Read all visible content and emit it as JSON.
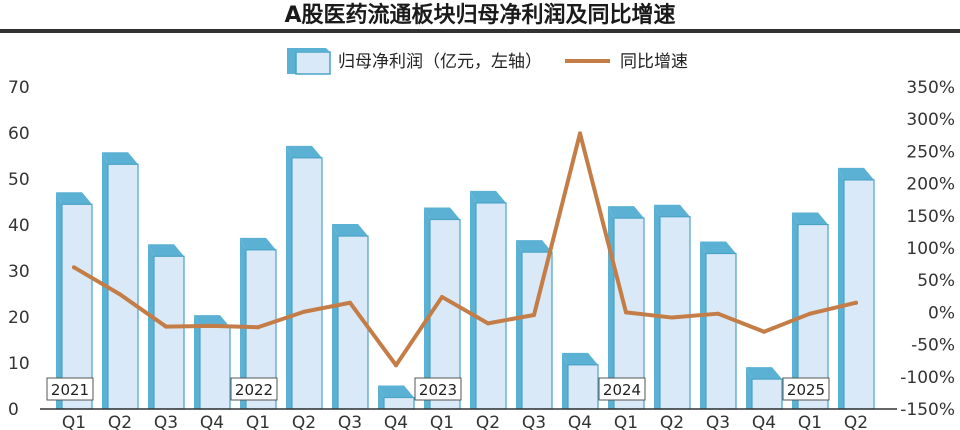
{
  "chart_data": {
    "type": "bar",
    "title": "A股医药流通板块归母净利润及同比增速",
    "categories": [
      "Q1",
      "Q2",
      "Q3",
      "Q4",
      "Q1",
      "Q2",
      "Q3",
      "Q4",
      "Q1",
      "Q2",
      "Q3",
      "Q4",
      "Q1",
      "Q2",
      "Q3",
      "Q4",
      "Q1",
      "Q2"
    ],
    "years": [
      {
        "label": "2021",
        "start_index": 0
      },
      {
        "label": "2022",
        "start_index": 4
      },
      {
        "label": "2023",
        "start_index": 8
      },
      {
        "label": "2024",
        "start_index": 12
      },
      {
        "label": "2025",
        "start_index": 16
      }
    ],
    "series": [
      {
        "name": "归母净利润（亿元，左轴）",
        "type": "bar",
        "axis": "left",
        "values": [
          44.5,
          53.2,
          33.2,
          17.8,
          34.6,
          54.6,
          37.6,
          2.5,
          41.2,
          44.8,
          34.1,
          9.6,
          41.5,
          41.8,
          33.8,
          6.5,
          40.1,
          49.8
        ]
      },
      {
        "name": "同比增速",
        "type": "line",
        "axis": "right",
        "values": [
          70,
          28,
          -22,
          -21,
          -23,
          1,
          15,
          -82,
          24,
          -17,
          -4,
          278,
          0,
          -8,
          -2,
          -30,
          -2,
          15
        ]
      }
    ],
    "ylim_left": [
      0,
      70
    ],
    "yticks_left": [
      "0",
      "10",
      "20",
      "30",
      "40",
      "50",
      "60",
      "70"
    ],
    "ylim_right": [
      -150,
      350
    ],
    "yticks_right": [
      "-150%",
      "-100%",
      "-50%",
      "0%",
      "50%",
      "100%",
      "150%",
      "200%",
      "250%",
      "300%",
      "350%"
    ],
    "legend_position": "top-center",
    "grid": false,
    "colors": {
      "bar_front": "#d9e9f7",
      "bar_side": "#5bb1d3",
      "bar_top": "#5bb1d3",
      "bar_stroke": "#4aa3c7",
      "line": "#c47d46",
      "title_rule": "#333333",
      "axis": "#333333"
    }
  }
}
